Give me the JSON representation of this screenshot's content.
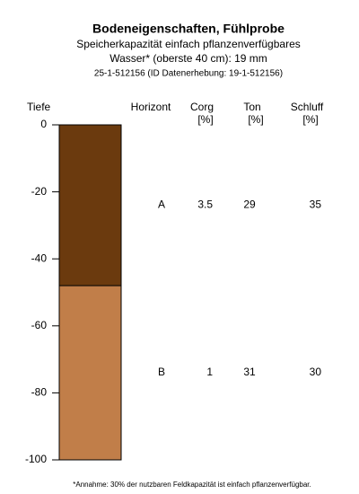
{
  "chart_data": {
    "type": "profile",
    "title": "Bodeneigenschaften, Fühlprobe",
    "subtitle": [
      "Speicherkapazität einfach pflanzenverfügbares",
      "Wasser* (oberste 40 cm): 19 mm",
      "25-1-512156 (ID Datenerhebung: 19-1-512156)"
    ],
    "y_label": "Tiefe",
    "ylim": [
      -100,
      0
    ],
    "yticks": [
      0,
      -20,
      -40,
      -60,
      -80,
      -100
    ],
    "columns": [
      {
        "name": "Horizont"
      },
      {
        "name": "Corg",
        "unit": "[%]"
      },
      {
        "name": "Ton",
        "unit": "[%]"
      },
      {
        "name": "Schluff",
        "unit": "[%]"
      }
    ],
    "layers": [
      {
        "top": 0,
        "bottom": -48,
        "color": "#6b3a0e",
        "cells": [
          "A",
          3.5,
          29,
          35
        ]
      },
      {
        "top": -48,
        "bottom": -100,
        "color": "#c17e49",
        "cells": [
          "B",
          1,
          31,
          30
        ]
      }
    ],
    "footnote": "*Annahme: 30% der nutzbaren Feldkapazität ist einfach pflanzenverfügbar."
  }
}
